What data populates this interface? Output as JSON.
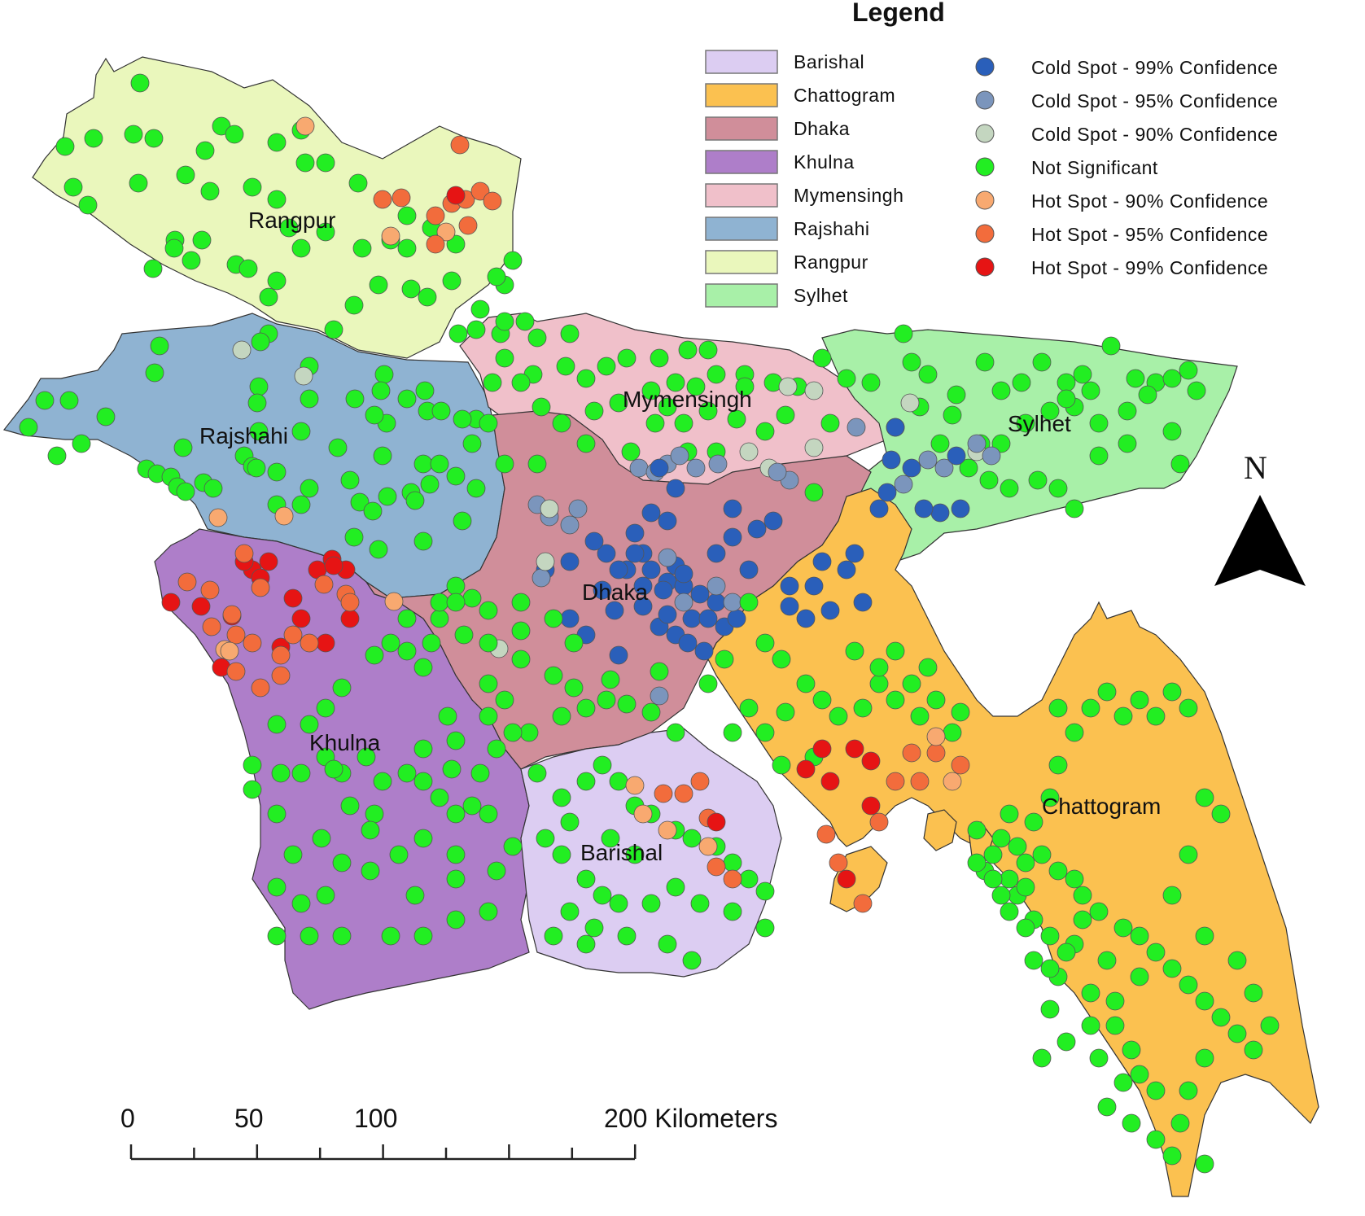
{
  "legend": {
    "title": "Legend",
    "regions": [
      {
        "name": "Barishal",
        "color": "#dccdf2"
      },
      {
        "name": "Chattogram",
        "color": "#fbc150"
      },
      {
        "name": "Dhaka",
        "color": "#d08e9a"
      },
      {
        "name": "Khulna",
        "color": "#ae7ec9"
      },
      {
        "name": "Mymensingh",
        "color": "#f0c0ca"
      },
      {
        "name": "Rajshahi",
        "color": "#8fb3d2"
      },
      {
        "name": "Rangpur",
        "color": "#eaf7bc"
      },
      {
        "name": "Sylhet",
        "color": "#a8f0a8"
      }
    ],
    "categories": [
      {
        "name": "Cold Spot - 99% Confidence",
        "color": "#2a5fba"
      },
      {
        "name": "Cold Spot - 95% Confidence",
        "color": "#7b95bc"
      },
      {
        "name": "Cold Spot - 90% Confidence",
        "color": "#c4d6c0"
      },
      {
        "name": "Not Significant",
        "color": "#22ee22"
      },
      {
        "name": "Hot Spot - 90% Confidence",
        "color": "#f8a970"
      },
      {
        "name": "Hot Spot - 95% Confidence",
        "color": "#f26c3c"
      },
      {
        "name": "Hot Spot - 99% Confidence",
        "color": "#e61414"
      }
    ]
  },
  "map_labels": {
    "rangpur": "Rangpur",
    "rajshahi": "Rajshahi",
    "mymensingh": "Mymensingh",
    "sylhet": "Sylhet",
    "dhaka": "Dhaka",
    "khulna": "Khulna",
    "barishal": "Barishal",
    "chattogram": "Chattogram"
  },
  "north_arrow": {
    "label": "N"
  },
  "scale_bar": {
    "ticks": [
      "0",
      "50",
      "100",
      "200 Kilometers"
    ]
  }
}
